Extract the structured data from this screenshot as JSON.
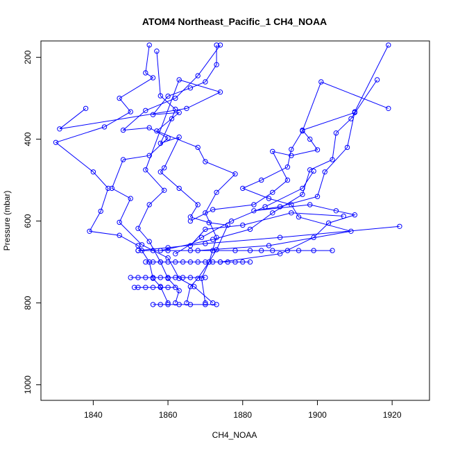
{
  "chart_data": {
    "type": "scatter",
    "title": "ATOM4 Northeast_Pacific_1 CH4_NOAA",
    "xlabel": "CH4_NOAA",
    "ylabel": "Pressure (mbar)",
    "xlim": [
      1826,
      1930
    ],
    "ylim": [
      1038,
      160
    ],
    "y_reversed": true,
    "grid": false,
    "legend": "none",
    "x_ticks": [
      1840,
      1860,
      1880,
      1900,
      1920
    ],
    "y_ticks": [
      200,
      400,
      600,
      800,
      1000
    ],
    "color": "#0000ff",
    "marker": "open-circle",
    "series": [
      {
        "values": [
          [
            1855,
            170
          ],
          [
            1854,
            238
          ],
          [
            1856,
            250
          ],
          [
            1847,
            300
          ],
          [
            1850,
            333
          ],
          [
            1843,
            370
          ],
          [
            1830,
            408
          ],
          [
            1840,
            480
          ],
          [
            1844,
            520
          ],
          [
            1842,
            576
          ],
          [
            1839,
            625
          ],
          [
            1847,
            635
          ],
          [
            1852,
            660
          ],
          [
            1853,
            672
          ],
          [
            1855,
            700
          ],
          [
            1856,
            740
          ],
          [
            1858,
            760
          ],
          [
            1860,
            800
          ]
        ]
      },
      {
        "values": [
          [
            1874,
            170
          ],
          [
            1868,
            245
          ],
          [
            1862,
            300
          ],
          [
            1854,
            330
          ],
          [
            1848,
            378
          ],
          [
            1855,
            372
          ],
          [
            1860,
            397
          ],
          [
            1855,
            440
          ],
          [
            1848,
            450
          ],
          [
            1845,
            520
          ],
          [
            1850,
            545
          ],
          [
            1847,
            603
          ],
          [
            1853,
            658
          ],
          [
            1860,
            690
          ],
          [
            1863,
            740
          ],
          [
            1867,
            760
          ],
          [
            1872,
            800
          ]
        ]
      },
      {
        "values": [
          [
            1857,
            185
          ],
          [
            1858,
            294
          ],
          [
            1862,
            327
          ],
          [
            1861,
            350
          ],
          [
            1858,
            410
          ],
          [
            1863,
            395
          ],
          [
            1859,
            470
          ],
          [
            1858,
            480
          ],
          [
            1863,
            520
          ],
          [
            1868,
            560
          ],
          [
            1866,
            590
          ],
          [
            1871,
            604
          ],
          [
            1876,
            610
          ],
          [
            1873,
            670
          ],
          [
            1871,
            700
          ],
          [
            1868,
            740
          ],
          [
            1866,
            760
          ],
          [
            1865,
            800
          ]
        ]
      },
      {
        "values": [
          [
            1873,
            170
          ],
          [
            1873,
            218
          ],
          [
            1870,
            260
          ],
          [
            1866,
            275
          ],
          [
            1860,
            295
          ],
          [
            1856,
            340
          ],
          [
            1863,
            335
          ],
          [
            1857,
            380
          ],
          [
            1868,
            420
          ],
          [
            1870,
            455
          ],
          [
            1878,
            485
          ],
          [
            1873,
            530
          ],
          [
            1870,
            580
          ],
          [
            1873,
            640
          ],
          [
            1871,
            700
          ],
          [
            1869,
            740
          ],
          [
            1870,
            800
          ]
        ]
      },
      {
        "values": [
          [
            1838,
            325
          ],
          [
            1831,
            375
          ],
          [
            1865,
            325
          ],
          [
            1874,
            285
          ],
          [
            1863,
            255
          ],
          [
            1854,
            475
          ],
          [
            1859,
            525
          ],
          [
            1855,
            560
          ],
          [
            1852,
            618
          ],
          [
            1855,
            650
          ],
          [
            1858,
            700
          ],
          [
            1860,
            740
          ],
          [
            1863,
            770
          ],
          [
            1862,
            800
          ]
        ]
      },
      {
        "values": [
          [
            1919,
            170
          ],
          [
            1910,
            333
          ],
          [
            1908,
            420
          ],
          [
            1902,
            480
          ],
          [
            1900,
            540
          ],
          [
            1890,
            565
          ],
          [
            1883,
            575
          ],
          [
            1898,
            560
          ],
          [
            1905,
            575
          ],
          [
            1910,
            585
          ],
          [
            1903,
            605
          ],
          [
            1899,
            640
          ],
          [
            1890,
            680
          ],
          [
            1874,
            700
          ]
        ]
      },
      {
        "values": [
          [
            1916,
            255
          ],
          [
            1909,
            350
          ],
          [
            1905,
            385
          ],
          [
            1904,
            450
          ],
          [
            1898,
            475
          ],
          [
            1896,
            535
          ],
          [
            1888,
            580
          ],
          [
            1882,
            620
          ],
          [
            1872,
            645
          ],
          [
            1858,
            672
          ]
        ]
      },
      {
        "values": [
          [
            1919,
            325
          ],
          [
            1901,
            260
          ],
          [
            1896,
            380
          ],
          [
            1893,
            425
          ],
          [
            1892,
            468
          ],
          [
            1885,
            500
          ],
          [
            1880,
            520
          ],
          [
            1887,
            545
          ],
          [
            1893,
            560
          ],
          [
            1895,
            590
          ],
          [
            1909,
            625
          ],
          [
            1887,
            660
          ],
          [
            1868,
            672
          ]
        ]
      },
      {
        "values": [
          [
            1910,
            335
          ],
          [
            1896,
            378
          ],
          [
            1898,
            400
          ],
          [
            1900,
            426
          ],
          [
            1893,
            440
          ],
          [
            1888,
            430
          ],
          [
            1892,
            500
          ],
          [
            1888,
            530
          ],
          [
            1883,
            560
          ],
          [
            1872,
            572
          ],
          [
            1866,
            600
          ]
        ]
      },
      {
        "values": [
          [
            1922,
            613
          ],
          [
            1890,
            640
          ],
          [
            1870,
            655
          ],
          [
            1860,
            665
          ],
          [
            1852,
            672
          ]
        ]
      },
      {
        "values": [
          [
            1907,
            588
          ],
          [
            1893,
            580
          ],
          [
            1880,
            610
          ],
          [
            1870,
            620
          ],
          [
            1866,
            660
          ]
        ]
      },
      {
        "values": [
          [
            1899,
            478
          ],
          [
            1896,
            520
          ],
          [
            1886,
            565
          ],
          [
            1877,
            600
          ],
          [
            1869,
            640
          ],
          [
            1862,
            680
          ]
        ]
      },
      {
        "values": [
          [
            1882,
            700
          ],
          [
            1880,
            700
          ],
          [
            1878,
            700
          ],
          [
            1876,
            700
          ],
          [
            1874,
            700
          ],
          [
            1872,
            700
          ],
          [
            1870,
            700
          ],
          [
            1868,
            700
          ],
          [
            1866,
            700
          ],
          [
            1864,
            700
          ],
          [
            1862,
            700
          ],
          [
            1860,
            700
          ],
          [
            1858,
            700
          ],
          [
            1856,
            700
          ],
          [
            1854,
            700
          ]
        ]
      },
      {
        "values": [
          [
            1904,
            672
          ],
          [
            1899,
            672
          ],
          [
            1895,
            672
          ],
          [
            1892,
            672
          ],
          [
            1888,
            672
          ],
          [
            1885,
            672
          ],
          [
            1882,
            672
          ],
          [
            1878,
            672
          ],
          [
            1872,
            672
          ],
          [
            1866,
            672
          ],
          [
            1860,
            672
          ],
          [
            1856,
            672
          ],
          [
            1852,
            672
          ]
        ]
      },
      {
        "values": [
          [
            1870,
            738
          ],
          [
            1866,
            738
          ],
          [
            1864,
            738
          ],
          [
            1862,
            738
          ],
          [
            1860,
            738
          ],
          [
            1858,
            738
          ],
          [
            1856,
            738
          ],
          [
            1854,
            738
          ],
          [
            1852,
            738
          ],
          [
            1850,
            738
          ]
        ]
      },
      {
        "values": [
          [
            1862,
            762
          ],
          [
            1860,
            762
          ],
          [
            1858,
            762
          ],
          [
            1856,
            762
          ],
          [
            1854,
            762
          ],
          [
            1852,
            762
          ],
          [
            1851,
            762
          ]
        ]
      },
      {
        "values": [
          [
            1873,
            804
          ],
          [
            1870,
            804
          ],
          [
            1866,
            804
          ],
          [
            1863,
            804
          ],
          [
            1860,
            804
          ],
          [
            1858,
            804
          ],
          [
            1856,
            804
          ]
        ]
      }
    ]
  }
}
